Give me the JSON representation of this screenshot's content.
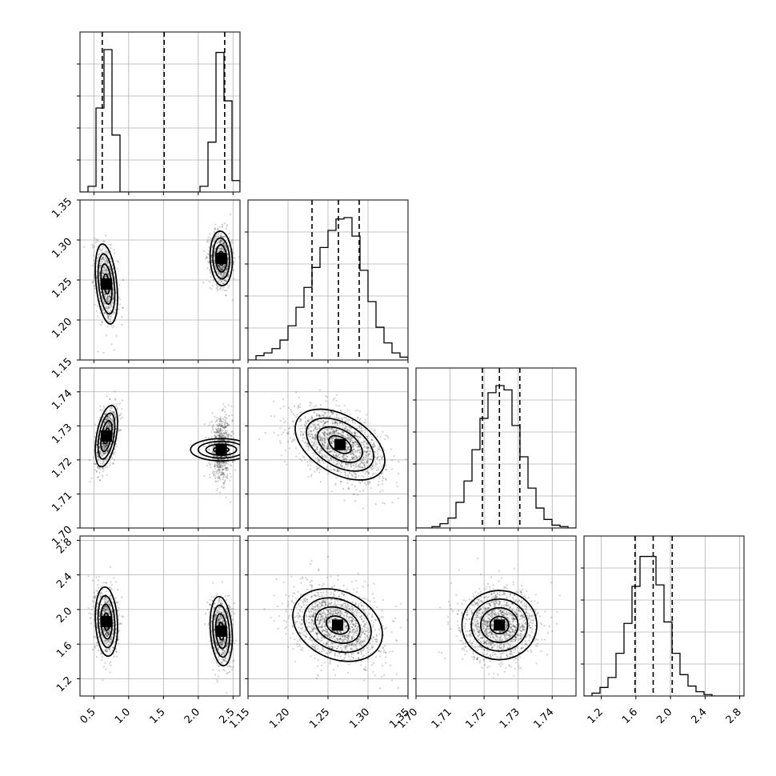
{
  "chart_data": {
    "type": "scatter",
    "title": "",
    "parameters": [
      {
        "range": [
          0.3,
          2.6
        ],
        "ticks": [
          "0.5",
          "1.0",
          "1.5",
          "2.0",
          "2.5"
        ],
        "quantiles": [
          0.62,
          1.51,
          2.38
        ],
        "modes": [
          {
            "mean": 0.68,
            "sd": 0.08,
            "weight": 0.5
          },
          {
            "mean": 2.33,
            "sd": 0.08,
            "weight": 0.5
          }
        ],
        "hist": {
          "edges_start": 0.3,
          "bin_width": 0.115,
          "counts": [
            0,
            0.04,
            0.59,
            1.0,
            0.4,
            0,
            0,
            0,
            0,
            0,
            0,
            0,
            0,
            0,
            0,
            0.04,
            0.35,
            0.98,
            0.64,
            0.08
          ]
        }
      },
      {
        "range": [
          1.15,
          1.35
        ],
        "ticks": [
          "1.15",
          "1.20",
          "1.25",
          "1.30",
          "1.35"
        ],
        "quantiles": [
          1.23,
          1.263,
          1.289
        ],
        "modes": [
          {
            "mean": 1.26,
            "sd": 0.03,
            "weight": 1
          }
        ],
        "hist": {
          "edges_start": 1.15,
          "bin_width": 0.01,
          "counts": [
            0.0,
            0.03,
            0.05,
            0.08,
            0.14,
            0.24,
            0.37,
            0.51,
            0.65,
            0.79,
            0.91,
            0.99,
            1.0,
            0.87,
            0.63,
            0.41,
            0.23,
            0.12,
            0.05,
            0.02
          ]
        }
      },
      {
        "range": [
          1.7,
          1.747
        ],
        "ticks": [
          "1.70",
          "1.71",
          "1.72",
          "1.73",
          "1.74"
        ],
        "quantiles": [
          1.7195,
          1.7245,
          1.7305
        ],
        "modes": [
          {
            "mean": 1.725,
            "sd": 0.005,
            "weight": 1
          }
        ],
        "hist": {
          "edges_start": 1.7,
          "bin_width": 0.00235,
          "counts": [
            0.0,
            0.0,
            0.01,
            0.03,
            0.07,
            0.18,
            0.33,
            0.55,
            0.77,
            0.95,
            1.0,
            0.97,
            0.72,
            0.5,
            0.28,
            0.14,
            0.06,
            0.02,
            0.01,
            0.0
          ]
        }
      },
      {
        "range": [
          1.0,
          2.85
        ],
        "ticks": [
          "1.2",
          "1.6",
          "2.0",
          "2.4",
          "2.8"
        ],
        "quantiles": [
          1.59,
          1.8,
          2.02
        ],
        "modes": [
          {
            "mean": 1.8,
            "sd": 0.2,
            "weight": 1
          }
        ],
        "hist": {
          "edges_start": 1.0,
          "bin_width": 0.0925,
          "counts": [
            0.0,
            0.02,
            0.06,
            0.13,
            0.3,
            0.51,
            0.77,
            0.98,
            0.98,
            0.78,
            0.52,
            0.3,
            0.15,
            0.07,
            0.03,
            0.01,
            0.0,
            0.0,
            0.0,
            0.0
          ]
        }
      }
    ],
    "pairs": [
      {
        "x": 0,
        "y": 1,
        "modes": [
          {
            "x": 0.68,
            "y": 1.245,
            "sx": 0.08,
            "sy": 0.025,
            "rho": -0.35,
            "weight": 0.5
          },
          {
            "x": 2.33,
            "y": 1.277,
            "sx": 0.08,
            "sy": 0.017,
            "rho": -0.1,
            "weight": 0.5
          }
        ]
      },
      {
        "x": 0,
        "y": 2,
        "modes": [
          {
            "x": 0.68,
            "y": 1.727,
            "sx": 0.08,
            "sy": 0.0045,
            "rho": 0.45,
            "weight": 0.5
          },
          {
            "x": 2.33,
            "y": 1.723,
            "sx": 0.08,
            "sy": 0.0045,
            "rho": 0.0,
            "weight": 0.5
          }
        ]
      },
      {
        "x": 1,
        "y": 2,
        "modes": [
          {
            "x": 1.265,
            "y": 1.7245,
            "sx": 0.028,
            "sy": 0.0052,
            "rho": -0.45,
            "weight": 1
          }
        ]
      },
      {
        "x": 0,
        "y": 3,
        "modes": [
          {
            "x": 0.68,
            "y": 1.86,
            "sx": 0.08,
            "sy": 0.2,
            "rho": -0.15,
            "weight": 0.5
          },
          {
            "x": 2.33,
            "y": 1.75,
            "sx": 0.08,
            "sy": 0.2,
            "rho": -0.2,
            "weight": 0.5
          }
        ]
      },
      {
        "x": 1,
        "y": 3,
        "modes": [
          {
            "x": 1.262,
            "y": 1.82,
            "sx": 0.028,
            "sy": 0.21,
            "rho": -0.25,
            "weight": 1
          }
        ]
      },
      {
        "x": 2,
        "y": 3,
        "modes": [
          {
            "x": 1.7245,
            "y": 1.82,
            "sx": 0.0055,
            "sy": 0.2,
            "rho": 0.0,
            "weight": 1
          }
        ]
      }
    ],
    "grid": true,
    "xlabel": "",
    "ylabel": ""
  }
}
